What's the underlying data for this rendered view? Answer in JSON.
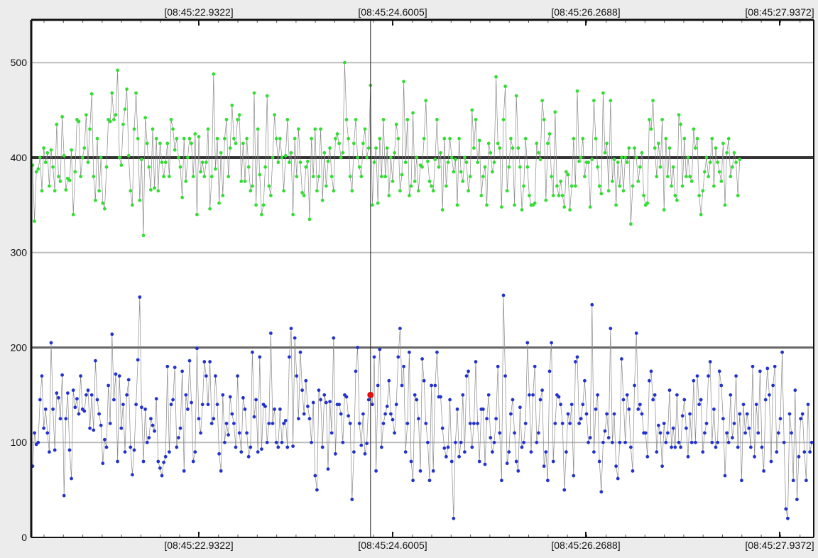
{
  "chart_data": {
    "type": "scatter",
    "title": "",
    "xlabel": "",
    "ylabel": "",
    "x_ticks": [
      "[08:45:22.9322]",
      "[08:45:24.6005]",
      "[08:45:26.2688]",
      "[08:45:27.9372]"
    ],
    "y_ticks": [
      0,
      100,
      200,
      300,
      400,
      500
    ],
    "ylim": [
      0,
      545
    ],
    "reference_lines": [
      {
        "value": 400,
        "style": "thick-dark"
      },
      {
        "value": 200,
        "style": "medium-dark"
      }
    ],
    "cursor_index": 183,
    "series": [
      {
        "color": "#33dd33",
        "values": [
          392,
          333,
          385,
          388,
          400,
          365,
          410,
          395,
          405,
          370,
          408,
          390,
          365,
          435,
          380,
          375,
          443,
          402,
          366,
          378,
          376,
          408,
          340,
          385,
          440,
          438,
          380,
          400,
          410,
          445,
          395,
          430,
          467,
          380,
          355,
          420,
          365,
          400,
          352,
          346,
          390,
          440,
          438,
          468,
          440,
          445,
          492,
          400,
          392,
          435,
          451,
          472,
          402,
          365,
          350,
          430,
          468,
          420,
          355,
          398,
          318,
          442,
          415,
          390,
          366,
          430,
          368,
          420,
          365,
          415,
          395,
          380,
          395,
          415,
          380,
          440,
          430,
          408,
          420,
          400,
          390,
          358,
          420,
          375,
          400,
          420,
          415,
          380,
          425,
          340,
          422,
          385,
          395,
          380,
          395,
          430,
          346,
          380,
          488,
          388,
          420,
          352,
          405,
          360,
          420,
          440,
          380,
          410,
          455,
          420,
          415,
          440,
          445,
          375,
          415,
          375,
          420,
          390,
          365,
          370,
          468,
          350,
          430,
          382,
          340,
          350,
          390,
          465,
          370,
          360,
          400,
          445,
          420,
          395,
          420,
          400,
          365,
          402,
          440,
          395,
          405,
          340,
          420,
          380,
          430,
          395,
          363,
          360,
          390,
          396,
          335,
          420,
          380,
          430,
          365,
          380,
          430,
          355,
          405,
          370,
          396,
          410,
          380,
          365,
          420,
          425,
          415,
          400,
          405,
          500,
          440,
          420,
          380,
          365,
          415,
          440,
          400,
          390,
          380,
          415,
          430,
          400,
          410,
          476,
          350,
          395,
          410,
          352,
          420,
          380,
          440,
          380,
          410,
          360,
          400,
          375,
          405,
          435,
          420,
          365,
          382,
          480,
          395,
          440,
          360,
          370,
          447,
          375,
          400,
          365,
          392,
          390,
          420,
          460,
          396,
          375,
          370,
          365,
          398,
          440,
          390,
          405,
          345,
          420,
          370,
          395,
          420,
          400,
          385,
          398,
          350,
          420,
          385,
          375,
          400,
          395,
          365,
          380,
          450,
          410,
          440,
          395,
          418,
          360,
          380,
          390,
          350,
          415,
          405,
          385,
          395,
          485,
          415,
          410,
          348,
          440,
          475,
          365,
          390,
          420,
          410,
          350,
          465,
          410,
          390,
          345,
          370,
          420,
          390,
          360,
          350,
          350,
          352,
          415,
          405,
          398,
          460,
          440,
          355,
          415,
          425,
          380,
          360,
          448,
          370,
          360,
          375,
          360,
          348,
          385,
          382,
          345,
          370,
          420,
          370,
          470,
          396,
          400,
          420,
          380,
          395,
          395,
          348,
          398,
          460,
          420,
          390,
          370,
          362,
          468,
          405,
          415,
          365,
          460,
          375,
          398,
          350,
          395,
          370,
          400,
          365,
          400,
          395,
          410,
          330,
          370,
          410,
          400,
          375,
          390,
          405,
          360,
          350,
          352,
          440,
          430,
          460,
          410,
          380,
          415,
          390,
          440,
          345,
          420,
          380,
          410,
          370,
          390,
          360,
          355,
          445,
          435,
          370,
          420,
          380,
          400,
          380,
          375,
          430,
          410,
          420,
          360,
          340,
          365,
          385,
          400,
          380,
          395,
          420,
          370,
          410,
          395,
          385,
          375,
          415,
          350,
          405,
          420,
          380,
          390,
          405,
          395,
          360,
          398
        ]
      },
      {
        "color": "#2233cc",
        "values": [
          75,
          110,
          98,
          100,
          145,
          170,
          115,
          135,
          110,
          90,
          205,
          135,
          92,
          152,
          147,
          125,
          171,
          44,
          125,
          152,
          92,
          62,
          155,
          137,
          146,
          130,
          170,
          135,
          133,
          150,
          155,
          115,
          150,
          113,
          186,
          145,
          130,
          118,
          78,
          103,
          95,
          160,
          120,
          214,
          145,
          172,
          80,
          170,
          115,
          140,
          90,
          150,
          166,
          95,
          66,
          92,
          140,
          187,
          253,
          137,
          80,
          135,
          100,
          105,
          125,
          118,
          112,
          146,
          80,
          73,
          65,
          79,
          85,
          180,
          90,
          140,
          145,
          179,
          95,
          105,
          115,
          175,
          70,
          150,
          135,
          186,
          142,
          80,
          90,
          199,
          125,
          110,
          140,
          185,
          170,
          140,
          185,
          120,
          125,
          170,
          140,
          88,
          70,
          150,
          100,
          120,
          108,
          148,
          130,
          120,
          95,
          170,
          110,
          90,
          147,
          135,
          110,
          85,
          95,
          195,
          127,
          145,
          90,
          190,
          93,
          140,
          138,
          100,
          120,
          215,
          120,
          135,
          100,
          95,
          135,
          100,
          120,
          123,
          95,
          190,
          220,
          96,
          210,
          170,
          125,
          195,
          155,
          130,
          165,
          138,
          125,
          100,
          142,
          65,
          50,
          155,
          145,
          95,
          150,
          142,
          72,
          143,
          110,
          210,
          88,
          140,
          140,
          130,
          100,
          150,
          148,
          128,
          120,
          40,
          90,
          175,
          200,
          120,
          97,
          130,
          88,
          99,
          145,
          150,
          140,
          190,
          70,
          160,
          198,
          95,
          120,
          130,
          138,
          165,
          130,
          124,
          110,
          140,
          190,
          220,
          160,
          180,
          90,
          120,
          195,
          80,
          60,
          150,
          145,
          125,
          70,
          188,
          165,
          120,
          100,
          60,
          160,
          70,
          160,
          195,
          148,
          148,
          115,
          94,
          85,
          95,
          145,
          80,
          20,
          100,
          135,
          85,
          100,
          150,
          90,
          170,
          175,
          120,
          95,
          120,
          185,
          120,
          80,
          135,
          135,
          77,
          125,
          150,
          105,
          90,
          100,
          125,
          180,
          110,
          60,
          255,
          170,
          78,
          90,
          130,
          145,
          110,
          80,
          70,
          137,
          95,
          100,
          120,
          205,
          150,
          90,
          150,
          180,
          100,
          110,
          145,
          155,
          75,
          90,
          60,
          175,
          205,
          80,
          120,
          150,
          148,
          140,
          120,
          50,
          90,
          130,
          120,
          140,
          65,
          185,
          190,
          120,
          125,
          140,
          165,
          130,
          100,
          105,
          245,
          90,
          135,
          150,
          80,
          48,
          100,
          112,
          130,
          105,
          220,
          100,
          130,
          75,
          62,
          100,
          188,
          145,
          100,
          150,
          135,
          95,
          70,
          160,
          215,
          135,
          140,
          130,
          110,
          110,
          85,
          165,
          175,
          145,
          150,
          90,
          118,
          110,
          75,
          120,
          100,
          110,
          155,
          95,
          115,
          95,
          150,
          100,
          95,
          128,
          145,
          115,
          85,
          130,
          100,
          165,
          100,
          170,
          140,
          145,
          90,
          110,
          120,
          170,
          185,
          100,
          135,
          95,
          100,
          175,
          160,
          125,
          65,
          110,
          100,
          150,
          105,
          120,
          170,
          95,
          130,
          60,
          140,
          110,
          130,
          115,
          95,
          180,
          85,
          140,
          110,
          175,
          95,
          70,
          145,
          178,
          150,
          80,
          160,
          180,
          90,
          110,
          125,
          195,
          100,
          30,
          20,
          130,
          110,
          60,
          155,
          40,
          85,
          125,
          130,
          90,
          60,
          140,
          90,
          100,
          105,
          125,
          110,
          85,
          100,
          130,
          150,
          185,
          180,
          100,
          145,
          130,
          75,
          95,
          125,
          155
        ]
      }
    ]
  }
}
